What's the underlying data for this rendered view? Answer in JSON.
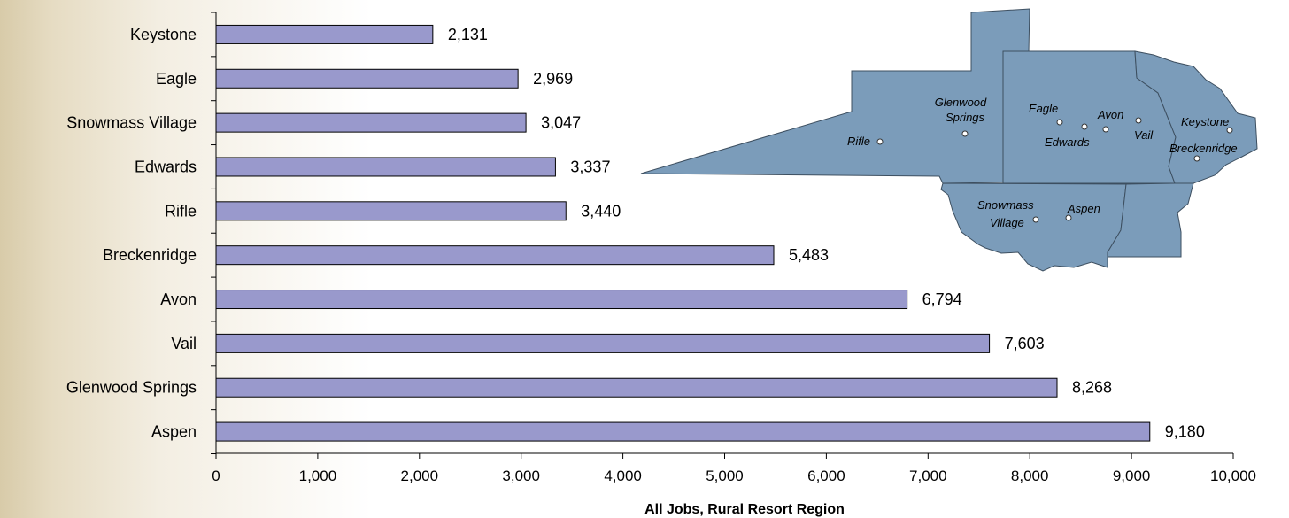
{
  "chart_data": {
    "type": "bar",
    "orientation": "horizontal",
    "categories": [
      "Keystone",
      "Eagle",
      "Snowmass Village",
      "Edwards",
      "Rifle",
      "Breckenridge",
      "Avon",
      "Vail",
      "Glenwood Springs",
      "Aspen"
    ],
    "values": [
      2131,
      2969,
      3047,
      3337,
      3440,
      5483,
      6794,
      7603,
      8268,
      9180
    ],
    "value_labels": [
      "2,131",
      "2,969",
      "3,047",
      "3,337",
      "3,440",
      "5,483",
      "6,794",
      "7,603",
      "8,268",
      "9,180"
    ],
    "xlabel": "All Jobs, Rural Resort Region",
    "ylabel": "",
    "xlim": [
      0,
      10000
    ],
    "xticks": [
      0,
      1000,
      2000,
      3000,
      4000,
      5000,
      6000,
      7000,
      8000,
      9000,
      10000
    ],
    "xtick_labels": [
      "0",
      "1,000",
      "2,000",
      "3,000",
      "4,000",
      "5,000",
      "6,000",
      "7,000",
      "8,000",
      "9,000",
      "10,000"
    ],
    "grid": false,
    "legend": "none",
    "bar_color": "#9999cc",
    "bar_edge_color": "#000000"
  },
  "map": {
    "fill_color": "#7b9cba",
    "edge_color": "#3d4f60",
    "towns": [
      "Glenwood Springs",
      "Rifle",
      "Eagle",
      "Avon",
      "Edwards",
      "Vail",
      "Keystone",
      "Breckenridge",
      "Snowmass Village",
      "Aspen"
    ],
    "labels": {
      "glenwood_line1": "Glenwood",
      "glenwood_line2": "Springs",
      "rifle": "Rifle",
      "eagle": "Eagle",
      "avon": "Avon",
      "edwards": "Edwards",
      "vail": "Vail",
      "keystone": "Keystone",
      "breckenridge": "Breckenridge",
      "snowmass_line1": "Snowmass",
      "snowmass_line2": "Village",
      "aspen": "Aspen"
    }
  }
}
